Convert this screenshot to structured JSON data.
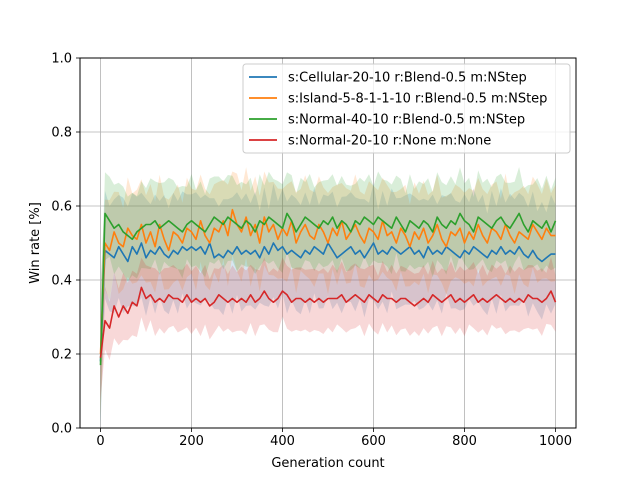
{
  "chart_data": {
    "type": "line",
    "title": "",
    "xlabel": "Generation count",
    "ylabel": "Win rate [%]",
    "xlim": [
      -45,
      1045
    ],
    "ylim": [
      0.0,
      1.0
    ],
    "xticks": [
      0,
      200,
      400,
      600,
      800,
      1000
    ],
    "yticks": [
      0.0,
      0.2,
      0.4,
      0.6,
      0.8,
      1.0
    ],
    "xtick_labels": [
      "0",
      "200",
      "400",
      "600",
      "800",
      "1000"
    ],
    "ytick_labels": [
      "0.0",
      "0.2",
      "0.4",
      "0.6",
      "0.8",
      "1.0"
    ],
    "grid": true,
    "legend_position": "top-right",
    "x_step": 10,
    "series": [
      {
        "name": "s:Cellular-20-10 r:Blend-0.5 m:NStep",
        "color": "#1f77b4",
        "values": [
          0.18,
          0.48,
          0.47,
          0.46,
          0.49,
          0.47,
          0.45,
          0.49,
          0.47,
          0.5,
          0.46,
          0.48,
          0.47,
          0.49,
          0.47,
          0.46,
          0.48,
          0.47,
          0.49,
          0.48,
          0.49,
          0.48,
          0.49,
          0.47,
          0.5,
          0.46,
          0.47,
          0.46,
          0.48,
          0.47,
          0.49,
          0.47,
          0.48,
          0.47,
          0.48,
          0.46,
          0.49,
          0.47,
          0.5,
          0.48,
          0.49,
          0.47,
          0.48,
          0.47,
          0.46,
          0.48,
          0.47,
          0.49,
          0.48,
          0.47,
          0.5,
          0.48,
          0.46,
          0.47,
          0.48,
          0.49,
          0.47,
          0.48,
          0.46,
          0.48,
          0.5,
          0.47,
          0.48,
          0.47,
          0.49,
          0.48,
          0.47,
          0.48,
          0.49,
          0.47,
          0.48,
          0.46,
          0.49,
          0.47,
          0.48,
          0.47,
          0.49,
          0.48,
          0.47,
          0.46,
          0.48,
          0.47,
          0.49,
          0.48,
          0.47,
          0.46,
          0.48,
          0.47,
          0.49,
          0.47,
          0.48,
          0.47,
          0.49,
          0.47,
          0.46,
          0.48,
          0.46,
          0.45,
          0.46,
          0.47,
          0.47
        ],
        "band": 0.14
      },
      {
        "name": "s:Island-5-8-1-1-10 r:Blend-0.5 m:NStep",
        "color": "#ff7f0e",
        "values": [
          0.2,
          0.5,
          0.48,
          0.53,
          0.5,
          0.49,
          0.54,
          0.52,
          0.51,
          0.55,
          0.5,
          0.53,
          0.49,
          0.55,
          0.51,
          0.48,
          0.53,
          0.52,
          0.5,
          0.54,
          0.53,
          0.51,
          0.56,
          0.52,
          0.5,
          0.54,
          0.53,
          0.56,
          0.52,
          0.59,
          0.55,
          0.53,
          0.57,
          0.52,
          0.55,
          0.5,
          0.57,
          0.53,
          0.55,
          0.51,
          0.54,
          0.52,
          0.56,
          0.5,
          0.53,
          0.55,
          0.52,
          0.51,
          0.55,
          0.53,
          0.5,
          0.54,
          0.52,
          0.56,
          0.51,
          0.53,
          0.55,
          0.52,
          0.5,
          0.54,
          0.53,
          0.51,
          0.56,
          0.52,
          0.53,
          0.5,
          0.54,
          0.52,
          0.49,
          0.53,
          0.51,
          0.54,
          0.5,
          0.52,
          0.55,
          0.51,
          0.49,
          0.53,
          0.52,
          0.54,
          0.5,
          0.53,
          0.51,
          0.55,
          0.52,
          0.5,
          0.54,
          0.53,
          0.51,
          0.55,
          0.52,
          0.5,
          0.53,
          0.52,
          0.51,
          0.55,
          0.53,
          0.51,
          0.54,
          0.52,
          0.52
        ],
        "band": 0.12
      },
      {
        "name": "s:Normal-40-10 r:Blend-0.5 m:NStep",
        "color": "#2ca02c",
        "values": [
          0.17,
          0.58,
          0.56,
          0.54,
          0.55,
          0.53,
          0.52,
          0.51,
          0.53,
          0.54,
          0.55,
          0.55,
          0.56,
          0.54,
          0.55,
          0.56,
          0.55,
          0.54,
          0.53,
          0.55,
          0.56,
          0.55,
          0.54,
          0.53,
          0.55,
          0.57,
          0.56,
          0.55,
          0.57,
          0.56,
          0.55,
          0.54,
          0.56,
          0.55,
          0.53,
          0.56,
          0.55,
          0.57,
          0.56,
          0.55,
          0.54,
          0.58,
          0.56,
          0.53,
          0.55,
          0.57,
          0.56,
          0.55,
          0.54,
          0.56,
          0.55,
          0.57,
          0.54,
          0.56,
          0.55,
          0.53,
          0.56,
          0.55,
          0.57,
          0.56,
          0.55,
          0.57,
          0.56,
          0.55,
          0.54,
          0.57,
          0.55,
          0.53,
          0.56,
          0.55,
          0.54,
          0.56,
          0.55,
          0.53,
          0.57,
          0.55,
          0.54,
          0.56,
          0.55,
          0.58,
          0.56,
          0.55,
          0.53,
          0.57,
          0.56,
          0.55,
          0.54,
          0.56,
          0.57,
          0.55,
          0.54,
          0.56,
          0.58,
          0.55,
          0.53,
          0.56,
          0.55,
          0.54,
          0.56,
          0.53,
          0.56
        ],
        "band": 0.11
      },
      {
        "name": "s:Normal-20-10 r:None m:None",
        "color": "#d62728",
        "values": [
          0.19,
          0.29,
          0.27,
          0.33,
          0.3,
          0.33,
          0.31,
          0.34,
          0.33,
          0.38,
          0.35,
          0.36,
          0.34,
          0.35,
          0.34,
          0.36,
          0.35,
          0.35,
          0.34,
          0.36,
          0.34,
          0.35,
          0.34,
          0.35,
          0.33,
          0.34,
          0.36,
          0.35,
          0.34,
          0.35,
          0.34,
          0.35,
          0.34,
          0.36,
          0.34,
          0.35,
          0.37,
          0.35,
          0.34,
          0.35,
          0.37,
          0.36,
          0.34,
          0.35,
          0.35,
          0.34,
          0.35,
          0.34,
          0.35,
          0.34,
          0.35,
          0.35,
          0.35,
          0.36,
          0.34,
          0.35,
          0.36,
          0.35,
          0.34,
          0.36,
          0.35,
          0.34,
          0.36,
          0.35,
          0.35,
          0.34,
          0.35,
          0.35,
          0.34,
          0.33,
          0.34,
          0.35,
          0.34,
          0.36,
          0.35,
          0.34,
          0.35,
          0.36,
          0.34,
          0.35,
          0.34,
          0.35,
          0.36,
          0.34,
          0.35,
          0.34,
          0.35,
          0.36,
          0.35,
          0.34,
          0.35,
          0.34,
          0.35,
          0.34,
          0.36,
          0.35,
          0.35,
          0.34,
          0.35,
          0.37,
          0.34
        ],
        "band": 0.08
      }
    ]
  }
}
